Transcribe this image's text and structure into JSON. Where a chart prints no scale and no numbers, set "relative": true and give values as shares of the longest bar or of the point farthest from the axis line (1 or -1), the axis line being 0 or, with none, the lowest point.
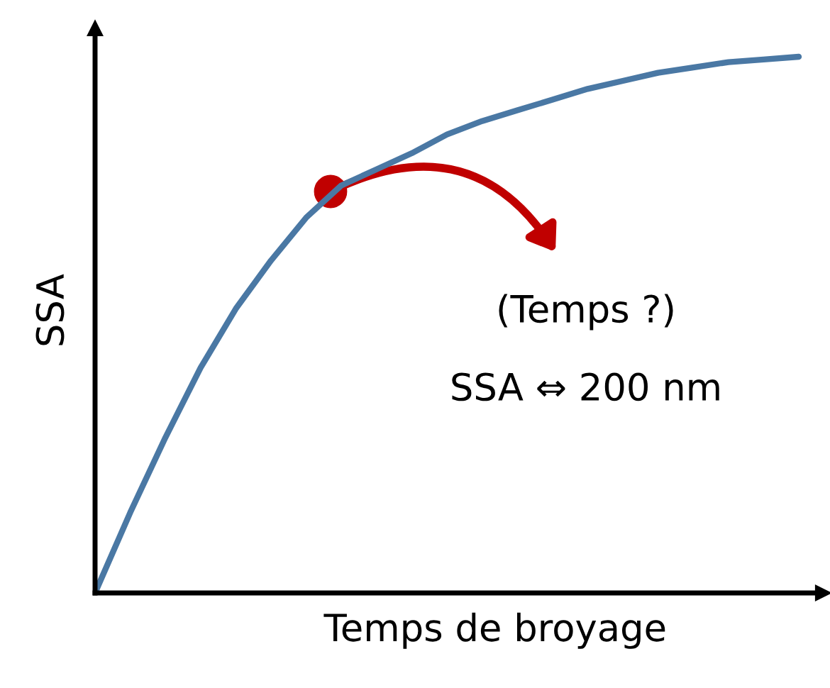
{
  "chart_data": {
    "type": "line",
    "relative": true,
    "xlabel": "Temps de broyage",
    "ylabel": "SSA",
    "annotations": [
      "(Temps ?)",
      "SSA ⇔ 200 nm"
    ],
    "categories": [
      null,
      null,
      null,
      null,
      null,
      null,
      null,
      null,
      null,
      null,
      null,
      null,
      null,
      null,
      null,
      null,
      null,
      null,
      null,
      null,
      null
    ],
    "series": [
      {
        "color": "#4a78a4",
        "values": [
          0,
          0.15,
          0.29,
          0.42,
          0.53,
          0.62,
          0.7,
          0.76,
          0.79,
          0.82,
          0.855,
          0.88,
          0.9,
          0.92,
          0.94,
          0.955,
          0.97,
          0.98,
          0.99,
          0.995,
          1.0
        ]
      }
    ],
    "marker": "none",
    "line_style": "solid"
  }
}
